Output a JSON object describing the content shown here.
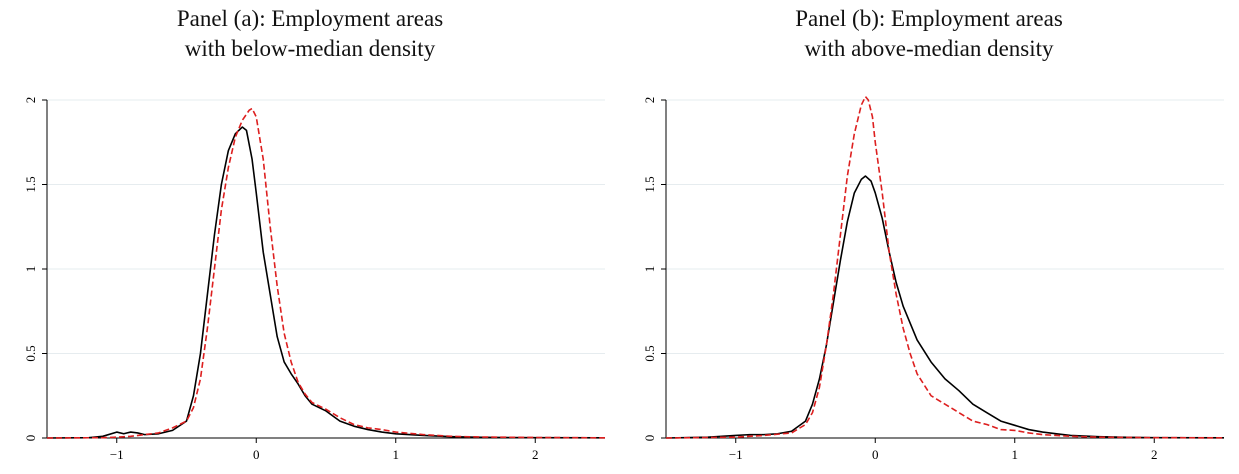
{
  "chart_data": [
    {
      "type": "line",
      "title": "Panel (a): Employment areas",
      "subtitle": "with below-median density",
      "xlabel": "",
      "ylabel": "",
      "xlim": [
        -1.5,
        2.5
      ],
      "ylim": [
        0,
        2.0
      ],
      "xticks": [
        -1,
        0,
        1,
        2
      ],
      "xtick_labels": [
        "−1",
        "0",
        "1",
        "2"
      ],
      "yticks": [
        0,
        0.5,
        1,
        1.5,
        2
      ],
      "ytick_labels": [
        "0",
        "0.5",
        "1",
        "1.5",
        "2"
      ],
      "grid": "horizontal",
      "legend": "none",
      "series": [
        {
          "color": "#000000",
          "style": "solid",
          "points": [
            [
              -1.5,
              0
            ],
            [
              -1.2,
              0.002
            ],
            [
              -1.1,
              0.01
            ],
            [
              -1.0,
              0.035
            ],
            [
              -0.95,
              0.025
            ],
            [
              -0.9,
              0.035
            ],
            [
              -0.85,
              0.03
            ],
            [
              -0.8,
              0.02
            ],
            [
              -0.7,
              0.025
            ],
            [
              -0.6,
              0.045
            ],
            [
              -0.5,
              0.1
            ],
            [
              -0.45,
              0.25
            ],
            [
              -0.4,
              0.5
            ],
            [
              -0.35,
              0.85
            ],
            [
              -0.3,
              1.2
            ],
            [
              -0.25,
              1.5
            ],
            [
              -0.2,
              1.7
            ],
            [
              -0.15,
              1.8
            ],
            [
              -0.1,
              1.84
            ],
            [
              -0.07,
              1.82
            ],
            [
              -0.03,
              1.65
            ],
            [
              0,
              1.45
            ],
            [
              0.05,
              1.1
            ],
            [
              0.1,
              0.85
            ],
            [
              0.15,
              0.6
            ],
            [
              0.2,
              0.45
            ],
            [
              0.25,
              0.38
            ],
            [
              0.3,
              0.32
            ],
            [
              0.35,
              0.25
            ],
            [
              0.4,
              0.2
            ],
            [
              0.5,
              0.16
            ],
            [
              0.6,
              0.1
            ],
            [
              0.7,
              0.07
            ],
            [
              0.8,
              0.05
            ],
            [
              0.9,
              0.035
            ],
            [
              1.0,
              0.025
            ],
            [
              1.2,
              0.015
            ],
            [
              1.4,
              0.008
            ],
            [
              1.6,
              0.004
            ],
            [
              2.0,
              0.002
            ],
            [
              2.5,
              0.001
            ]
          ]
        },
        {
          "color": "#dd1f1f",
          "style": "dashed",
          "points": [
            [
              -1.5,
              0
            ],
            [
              -1.1,
              0.002
            ],
            [
              -1.0,
              0.005
            ],
            [
              -0.9,
              0.01
            ],
            [
              -0.8,
              0.02
            ],
            [
              -0.7,
              0.03
            ],
            [
              -0.6,
              0.06
            ],
            [
              -0.5,
              0.1
            ],
            [
              -0.45,
              0.18
            ],
            [
              -0.4,
              0.35
            ],
            [
              -0.35,
              0.65
            ],
            [
              -0.3,
              1.0
            ],
            [
              -0.25,
              1.35
            ],
            [
              -0.2,
              1.6
            ],
            [
              -0.15,
              1.78
            ],
            [
              -0.1,
              1.88
            ],
            [
              -0.05,
              1.94
            ],
            [
              -0.03,
              1.95
            ],
            [
              0,
              1.9
            ],
            [
              0.05,
              1.65
            ],
            [
              0.1,
              1.25
            ],
            [
              0.15,
              0.9
            ],
            [
              0.2,
              0.62
            ],
            [
              0.25,
              0.45
            ],
            [
              0.3,
              0.33
            ],
            [
              0.35,
              0.26
            ],
            [
              0.4,
              0.21
            ],
            [
              0.5,
              0.17
            ],
            [
              0.6,
              0.12
            ],
            [
              0.7,
              0.08
            ],
            [
              0.8,
              0.06
            ],
            [
              0.9,
              0.05
            ],
            [
              1.0,
              0.035
            ],
            [
              1.2,
              0.02
            ],
            [
              1.4,
              0.01
            ],
            [
              1.6,
              0.006
            ],
            [
              2.0,
              0.003
            ],
            [
              2.5,
              0.001
            ]
          ]
        }
      ]
    },
    {
      "type": "line",
      "title": "Panel (b): Employment areas",
      "subtitle": "with above-median density",
      "xlabel": "",
      "ylabel": "",
      "xlim": [
        -1.5,
        2.5
      ],
      "ylim": [
        0,
        2.0
      ],
      "xticks": [
        -1,
        0,
        1,
        2
      ],
      "xtick_labels": [
        "−1",
        "0",
        "1",
        "2"
      ],
      "yticks": [
        0,
        0.5,
        1,
        1.5,
        2
      ],
      "ytick_labels": [
        "0",
        "0.5",
        "1",
        "1.5",
        "2"
      ],
      "grid": "horizontal",
      "legend": "none",
      "series": [
        {
          "color": "#000000",
          "style": "solid",
          "points": [
            [
              -1.5,
              0
            ],
            [
              -1.2,
              0.005
            ],
            [
              -1.0,
              0.015
            ],
            [
              -0.9,
              0.02
            ],
            [
              -0.8,
              0.02
            ],
            [
              -0.7,
              0.025
            ],
            [
              -0.6,
              0.04
            ],
            [
              -0.5,
              0.1
            ],
            [
              -0.45,
              0.2
            ],
            [
              -0.4,
              0.35
            ],
            [
              -0.35,
              0.55
            ],
            [
              -0.3,
              0.8
            ],
            [
              -0.25,
              1.05
            ],
            [
              -0.2,
              1.28
            ],
            [
              -0.15,
              1.45
            ],
            [
              -0.1,
              1.53
            ],
            [
              -0.07,
              1.55
            ],
            [
              -0.03,
              1.52
            ],
            [
              0,
              1.45
            ],
            [
              0.05,
              1.3
            ],
            [
              0.1,
              1.1
            ],
            [
              0.15,
              0.92
            ],
            [
              0.2,
              0.78
            ],
            [
              0.3,
              0.58
            ],
            [
              0.4,
              0.45
            ],
            [
              0.5,
              0.35
            ],
            [
              0.6,
              0.28
            ],
            [
              0.7,
              0.2
            ],
            [
              0.8,
              0.15
            ],
            [
              0.9,
              0.1
            ],
            [
              1.0,
              0.075
            ],
            [
              1.1,
              0.05
            ],
            [
              1.2,
              0.035
            ],
            [
              1.3,
              0.025
            ],
            [
              1.4,
              0.015
            ],
            [
              1.6,
              0.008
            ],
            [
              1.8,
              0.004
            ],
            [
              2.0,
              0.002
            ],
            [
              2.5,
              0.001
            ]
          ]
        },
        {
          "color": "#dd1f1f",
          "style": "dashed",
          "points": [
            [
              -1.5,
              0
            ],
            [
              -1.0,
              0.005
            ],
            [
              -0.8,
              0.015
            ],
            [
              -0.6,
              0.03
            ],
            [
              -0.5,
              0.08
            ],
            [
              -0.45,
              0.15
            ],
            [
              -0.4,
              0.3
            ],
            [
              -0.35,
              0.55
            ],
            [
              -0.3,
              0.85
            ],
            [
              -0.25,
              1.2
            ],
            [
              -0.2,
              1.55
            ],
            [
              -0.15,
              1.8
            ],
            [
              -0.1,
              1.97
            ],
            [
              -0.07,
              2.02
            ],
            [
              -0.05,
              2.0
            ],
            [
              -0.02,
              1.9
            ],
            [
              0,
              1.75
            ],
            [
              0.05,
              1.45
            ],
            [
              0.1,
              1.1
            ],
            [
              0.15,
              0.85
            ],
            [
              0.2,
              0.65
            ],
            [
              0.25,
              0.5
            ],
            [
              0.3,
              0.38
            ],
            [
              0.4,
              0.25
            ],
            [
              0.5,
              0.2
            ],
            [
              0.6,
              0.15
            ],
            [
              0.7,
              0.1
            ],
            [
              0.8,
              0.08
            ],
            [
              0.9,
              0.05
            ],
            [
              1.0,
              0.045
            ],
            [
              1.1,
              0.03
            ],
            [
              1.2,
              0.02
            ],
            [
              1.4,
              0.01
            ],
            [
              1.6,
              0.005
            ],
            [
              2.0,
              0.002
            ],
            [
              2.5,
              0.001
            ]
          ]
        }
      ]
    }
  ]
}
